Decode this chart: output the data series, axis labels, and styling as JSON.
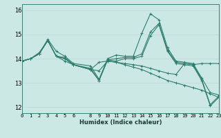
{
  "xlabel": "Humidex (Indice chaleur)",
  "bg_color": "#cce8e4",
  "line_color": "#2e7d6e",
  "grid_color_h": "#b8d8d4",
  "grid_color_v": "#c8c0c0",
  "lines": [
    {
      "x": [
        0,
        1,
        2,
        3,
        4,
        5,
        6,
        8,
        9,
        10,
        11,
        12,
        13,
        14,
        15,
        16,
        17,
        18,
        19,
        20,
        21,
        22,
        23
      ],
      "y": [
        13.9,
        14.0,
        14.2,
        14.8,
        14.3,
        14.1,
        13.8,
        13.7,
        13.15,
        14.0,
        14.15,
        14.1,
        14.1,
        15.05,
        15.85,
        15.6,
        14.45,
        13.9,
        13.85,
        13.8,
        13.2,
        12.6,
        12.5
      ]
    },
    {
      "x": [
        0,
        1,
        2,
        3,
        4,
        5,
        6,
        8,
        9,
        10,
        11,
        12,
        13,
        14,
        15,
        16,
        17,
        18,
        19,
        20,
        21,
        22,
        23
      ],
      "y": [
        13.9,
        14.0,
        14.25,
        14.75,
        14.1,
        14.05,
        13.75,
        13.6,
        13.1,
        13.95,
        14.0,
        14.05,
        14.05,
        14.2,
        15.1,
        15.45,
        14.35,
        13.85,
        13.8,
        13.75,
        13.15,
        12.1,
        12.45
      ]
    },
    {
      "x": [
        0,
        1,
        2,
        3,
        4,
        5,
        6,
        8,
        9,
        10,
        11,
        12,
        13,
        14,
        15,
        16,
        17,
        18,
        19,
        20,
        21,
        22,
        23
      ],
      "y": [
        13.9,
        14.0,
        14.2,
        14.75,
        14.1,
        14.0,
        13.75,
        13.55,
        13.1,
        13.95,
        13.9,
        14.0,
        14.0,
        14.1,
        14.95,
        15.4,
        14.3,
        13.8,
        13.75,
        13.7,
        13.1,
        12.05,
        12.4
      ]
    },
    {
      "x": [
        0,
        1,
        2,
        3,
        4,
        5,
        6,
        8,
        9,
        10,
        11,
        12,
        13,
        14,
        15,
        16,
        17,
        18,
        19,
        20,
        21,
        22,
        23
      ],
      "y": [
        13.9,
        14.0,
        14.2,
        14.75,
        14.1,
        13.9,
        13.75,
        13.55,
        13.5,
        13.9,
        13.85,
        13.75,
        13.65,
        13.55,
        13.4,
        13.25,
        13.1,
        13.0,
        12.9,
        12.8,
        12.7,
        12.55,
        12.4
      ]
    },
    {
      "x": [
        0,
        1,
        2,
        3,
        4,
        5,
        6,
        8,
        9,
        10,
        11,
        12,
        13,
        14,
        15,
        16,
        17,
        18,
        19,
        20,
        21,
        22,
        23
      ],
      "y": [
        13.9,
        14.0,
        14.2,
        14.75,
        14.1,
        14.0,
        13.75,
        13.55,
        13.85,
        13.9,
        13.85,
        13.8,
        13.75,
        13.7,
        13.6,
        13.5,
        13.4,
        13.35,
        13.8,
        13.75,
        13.8,
        13.8,
        13.8
      ]
    }
  ],
  "xlim": [
    0,
    23
  ],
  "ylim": [
    11.75,
    16.25
  ],
  "yticks": [
    12,
    13,
    14,
    15,
    16
  ],
  "xticks": [
    0,
    1,
    2,
    3,
    4,
    5,
    6,
    8,
    9,
    10,
    11,
    12,
    13,
    14,
    15,
    16,
    17,
    18,
    19,
    20,
    21,
    22,
    23
  ],
  "marker": "+",
  "markersize": 3,
  "linewidth": 0.8
}
